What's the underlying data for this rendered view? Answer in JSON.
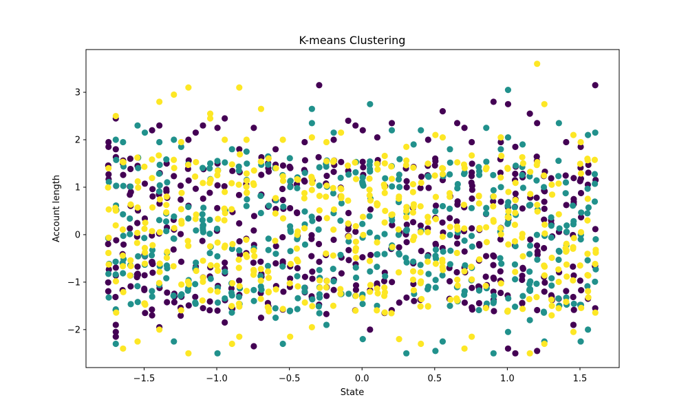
{
  "chart_data": {
    "type": "scatter",
    "title": "K-means Clustering",
    "xlabel": "State",
    "ylabel": "Account length",
    "xlim": [
      -1.9,
      1.77
    ],
    "ylim": [
      -2.8,
      3.9
    ],
    "xticks": [
      -1.5,
      -1.0,
      -0.5,
      0.0,
      0.5,
      1.0,
      1.5
    ],
    "xtick_labels": [
      "−1.5",
      "−1.0",
      "−0.5",
      "0.0",
      "0.5",
      "1.0",
      "1.5"
    ],
    "yticks": [
      -2,
      -1,
      0,
      1,
      2,
      3
    ],
    "ytick_labels": [
      "−2",
      "−1",
      "0",
      "1",
      "2",
      "3"
    ],
    "grid": false,
    "legend": "none",
    "x_levels": [
      -1.745,
      -1.695,
      -1.645,
      -1.595,
      -1.545,
      -1.495,
      -1.445,
      -1.395,
      -1.345,
      -1.295,
      -1.245,
      -1.195,
      -1.145,
      -1.095,
      -1.045,
      -0.995,
      -0.945,
      -0.895,
      -0.845,
      -0.795,
      -0.745,
      -0.695,
      -0.645,
      -0.595,
      -0.545,
      -0.495,
      -0.445,
      -0.395,
      -0.345,
      -0.295,
      -0.245,
      -0.195,
      -0.145,
      -0.095,
      -0.045,
      0.005,
      0.055,
      0.105,
      0.155,
      0.205,
      0.255,
      0.305,
      0.355,
      0.405,
      0.455,
      0.505,
      0.555,
      0.605,
      0.655,
      0.705,
      0.755,
      0.805,
      0.855,
      0.905,
      0.955,
      1.005,
      1.055,
      1.105,
      1.155,
      1.205,
      1.255,
      1.305,
      1.355,
      1.405,
      1.455,
      1.505,
      1.555,
      1.605
    ],
    "series": [
      {
        "color": "#440154",
        "points": [
          [
            -1.745,
            1.95
          ],
          [
            -1.745,
            1.85
          ],
          [
            -1.695,
            2.45
          ],
          [
            -1.695,
            1.8
          ],
          [
            -1.695,
            -1.9
          ],
          [
            -1.695,
            -2.05
          ],
          [
            -1.695,
            -2.15
          ],
          [
            -1.595,
            1.6
          ],
          [
            -1.545,
            1.45
          ],
          [
            -1.445,
            2.2
          ],
          [
            -1.395,
            2.3
          ],
          [
            -1.345,
            1.5
          ],
          [
            -1.395,
            -1.95
          ],
          [
            -1.445,
            -1.7
          ],
          [
            -1.195,
            2.0
          ],
          [
            -1.145,
            2.15
          ],
          [
            -1.095,
            2.3
          ],
          [
            -0.995,
            2.25
          ],
          [
            -0.945,
            2.45
          ],
          [
            -0.995,
            -1.6
          ],
          [
            -0.945,
            -1.85
          ],
          [
            -0.845,
            1.8
          ],
          [
            -0.745,
            2.25
          ],
          [
            -0.745,
            -2.35
          ],
          [
            -0.695,
            -1.75
          ],
          [
            -0.595,
            1.8
          ],
          [
            -0.395,
            1.95
          ],
          [
            -0.295,
            3.15
          ],
          [
            -0.195,
            2.0
          ],
          [
            -0.095,
            2.4
          ],
          [
            -0.045,
            2.3
          ],
          [
            0.005,
            2.2
          ],
          [
            0.105,
            2.05
          ],
          [
            0.055,
            -2.0
          ],
          [
            0.155,
            -1.65
          ],
          [
            0.205,
            2.35
          ],
          [
            0.455,
            2.0
          ],
          [
            0.505,
            1.55
          ],
          [
            0.555,
            2.6
          ],
          [
            0.655,
            2.35
          ],
          [
            0.705,
            2.25
          ],
          [
            0.755,
            1.95
          ],
          [
            0.905,
            2.8
          ],
          [
            0.955,
            1.95
          ],
          [
            1.005,
            2.75
          ],
          [
            1.055,
            1.85
          ],
          [
            1.155,
            2.55
          ],
          [
            1.205,
            2.35
          ],
          [
            1.205,
            -2.45
          ],
          [
            1.055,
            -2.5
          ],
          [
            1.005,
            -2.4
          ],
          [
            1.405,
            1.95
          ],
          [
            1.505,
            1.85
          ],
          [
            1.605,
            3.15
          ],
          [
            1.605,
            -1.55
          ],
          [
            1.555,
            -1.35
          ],
          [
            1.455,
            -1.9
          ],
          [
            1.305,
            -1.3
          ],
          [
            1.255,
            -1.2
          ]
        ]
      },
      {
        "color": "#21918c",
        "points": [
          [
            -1.695,
            2.0
          ],
          [
            -1.645,
            1.95
          ],
          [
            -1.545,
            2.3
          ],
          [
            -1.495,
            2.15
          ],
          [
            -1.395,
            1.95
          ],
          [
            -1.295,
            2.0
          ],
          [
            -1.245,
            1.85
          ],
          [
            -1.045,
            1.5
          ],
          [
            -0.895,
            1.8
          ],
          [
            -0.795,
            1.75
          ],
          [
            -0.345,
            2.65
          ],
          [
            -0.345,
            2.35
          ],
          [
            -0.195,
            2.15
          ],
          [
            0.055,
            2.75
          ],
          [
            0.205,
            2.2
          ],
          [
            0.355,
            1.9
          ],
          [
            0.405,
            2.2
          ],
          [
            0.605,
            1.8
          ],
          [
            0.855,
            2.25
          ],
          [
            0.955,
            1.8
          ],
          [
            1.005,
            3.05
          ],
          [
            1.005,
            2.05
          ],
          [
            1.105,
            1.9
          ],
          [
            1.355,
            2.35
          ],
          [
            1.555,
            2.1
          ],
          [
            1.605,
            2.15
          ],
          [
            -1.695,
            -2.3
          ],
          [
            -1.295,
            -2.25
          ],
          [
            -0.995,
            -2.5
          ],
          [
            -0.545,
            -2.3
          ],
          [
            -0.245,
            -1.9
          ],
          [
            0.005,
            -2.2
          ],
          [
            0.305,
            -2.5
          ],
          [
            0.505,
            -2.45
          ],
          [
            0.555,
            -2.25
          ],
          [
            0.905,
            -2.5
          ],
          [
            1.005,
            -2.05
          ],
          [
            1.255,
            -2.25
          ],
          [
            1.505,
            -2.25
          ],
          [
            1.555,
            -2.0
          ],
          [
            1.155,
            -1.8
          ],
          [
            0.605,
            -1.5
          ],
          [
            -0.595,
            -1.75
          ]
        ]
      },
      {
        "color": "#fde725",
        "points": [
          [
            -1.695,
            2.5
          ],
          [
            -1.745,
            1.4
          ],
          [
            -1.395,
            2.8
          ],
          [
            -1.295,
            2.95
          ],
          [
            -1.245,
            1.95
          ],
          [
            -1.195,
            3.1
          ],
          [
            -1.045,
            2.55
          ],
          [
            -1.045,
            2.45
          ],
          [
            -0.945,
            2.0
          ],
          [
            -0.845,
            3.1
          ],
          [
            -0.795,
            2.0
          ],
          [
            -0.695,
            2.65
          ],
          [
            -0.545,
            2.0
          ],
          [
            -0.345,
            2.05
          ],
          [
            -0.245,
            1.95
          ],
          [
            -0.145,
            2.15
          ],
          [
            0.305,
            1.85
          ],
          [
            0.505,
            2.1
          ],
          [
            0.555,
            2.05
          ],
          [
            0.955,
            2.05
          ],
          [
            1.205,
            3.6
          ],
          [
            1.255,
            2.75
          ],
          [
            1.455,
            2.1
          ],
          [
            1.505,
            1.95
          ],
          [
            -1.645,
            -2.4
          ],
          [
            -1.545,
            -2.25
          ],
          [
            -1.395,
            -2.0
          ],
          [
            -1.195,
            -2.5
          ],
          [
            -0.895,
            -2.3
          ],
          [
            -0.845,
            -2.15
          ],
          [
            -0.495,
            -2.15
          ],
          [
            -0.345,
            -1.95
          ],
          [
            0.255,
            -2.2
          ],
          [
            0.405,
            -2.3
          ],
          [
            0.705,
            -2.4
          ],
          [
            0.755,
            -2.15
          ],
          [
            1.155,
            -2.5
          ],
          [
            1.255,
            -2.3
          ],
          [
            1.455,
            -2.05
          ],
          [
            1.305,
            -1.7
          ],
          [
            -0.045,
            -1.6
          ]
        ]
      }
    ]
  }
}
